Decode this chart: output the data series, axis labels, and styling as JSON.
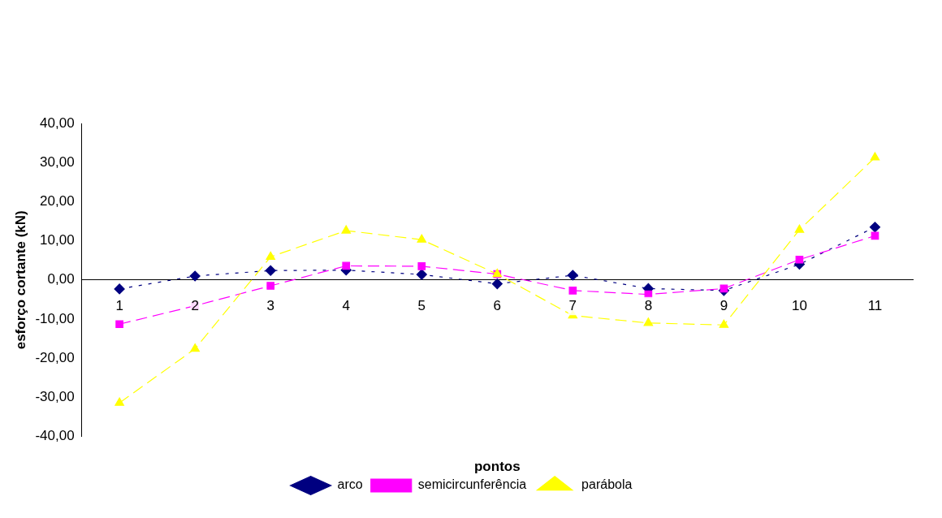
{
  "chart_data": {
    "type": "line",
    "xlabel": "pontos",
    "ylabel": "esforço cortante (kN)",
    "categories": [
      "1",
      "2",
      "3",
      "4",
      "5",
      "6",
      "7",
      "8",
      "9",
      "10",
      "11"
    ],
    "series": [
      {
        "name": "arco",
        "color": "#000080",
        "marker": "diamond",
        "line_style": "dotted",
        "values": [
          -2.3,
          1.0,
          2.4,
          2.5,
          1.4,
          -1.0,
          1.2,
          -2.2,
          -2.7,
          4.0,
          13.5
        ]
      },
      {
        "name": "semicircunferência",
        "color": "#ff00ff",
        "marker": "square",
        "line_style": "dashed",
        "values": [
          -11.3,
          -6.6,
          -1.5,
          3.6,
          3.5,
          1.5,
          -2.7,
          -3.7,
          -2.2,
          5.2,
          11.3
        ]
      },
      {
        "name": "parábola",
        "color": "#ffff00",
        "marker": "triangle",
        "line_style": "dashed",
        "values": [
          -31.4,
          -17.6,
          5.9,
          12.6,
          10.3,
          1.5,
          -9.1,
          -11.0,
          -11.5,
          12.8,
          31.3
        ]
      }
    ],
    "ylim": [
      -40,
      40
    ],
    "yticks": [
      {
        "value": -40,
        "label": "-40,00"
      },
      {
        "value": -30,
        "label": "-30,00"
      },
      {
        "value": -20,
        "label": "-20,00"
      },
      {
        "value": -10,
        "label": "-10,00"
      },
      {
        "value": 0,
        "label": "0,00"
      },
      {
        "value": 10,
        "label": "10,00"
      },
      {
        "value": 20,
        "label": "20,00"
      },
      {
        "value": 30,
        "label": "30,00"
      },
      {
        "value": 40,
        "label": "40,00"
      }
    ],
    "grid": false,
    "legend": "bottom"
  }
}
